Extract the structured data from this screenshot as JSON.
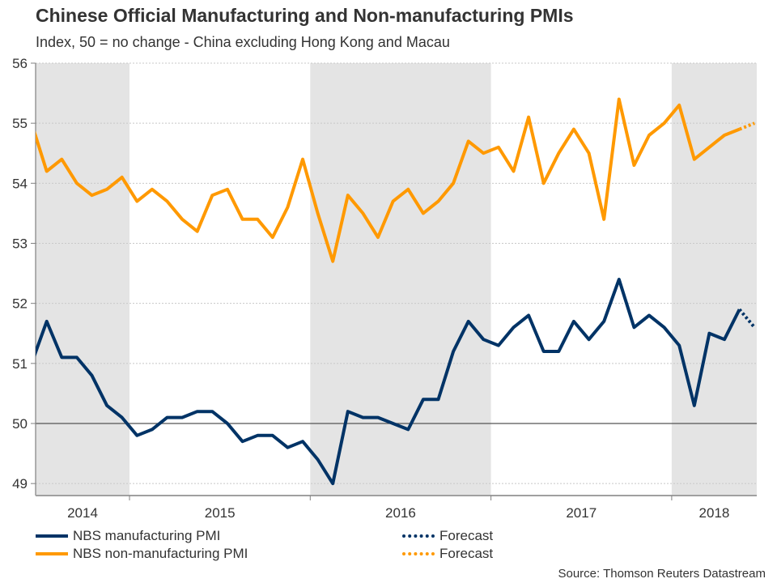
{
  "chart_data": {
    "type": "line",
    "title": "Chinese Official Manufacturing and Non-manufacturing PMIs",
    "subtitle": "Index, 50 = no change - China excluding Hong Kong and Macau",
    "xlabel": "",
    "ylabel": "",
    "ylim": [
      48.8,
      56
    ],
    "yticks": [
      49,
      50,
      51,
      52,
      53,
      54,
      55,
      56
    ],
    "reference_line": 50,
    "grid": true,
    "x_range": [
      "2014-06-17",
      "2018-06-22"
    ],
    "year_labels": [
      "2014",
      "2015",
      "2016",
      "2017",
      "2018"
    ],
    "shaded_years": [
      "2014",
      "2016",
      "2018"
    ],
    "x": [
      "2014-06",
      "2014-07",
      "2014-08",
      "2014-09",
      "2014-10",
      "2014-11",
      "2014-12",
      "2015-01",
      "2015-02",
      "2015-03",
      "2015-04",
      "2015-05",
      "2015-06",
      "2015-07",
      "2015-08",
      "2015-09",
      "2015-10",
      "2015-11",
      "2015-12",
      "2016-01",
      "2016-02",
      "2016-03",
      "2016-04",
      "2016-05",
      "2016-06",
      "2016-07",
      "2016-08",
      "2016-09",
      "2016-10",
      "2016-11",
      "2016-12",
      "2017-01",
      "2017-02",
      "2017-03",
      "2017-04",
      "2017-05",
      "2017-06",
      "2017-07",
      "2017-08",
      "2017-09",
      "2017-10",
      "2017-11",
      "2017-12",
      "2018-01",
      "2018-02",
      "2018-03",
      "2018-04",
      "2018-05",
      "2018-06"
    ],
    "series": [
      {
        "name": "NBS manufacturing PMI",
        "color": "#003366",
        "values": [
          51.0,
          51.7,
          51.1,
          51.1,
          50.8,
          50.3,
          50.1,
          49.8,
          49.9,
          50.1,
          50.1,
          50.2,
          50.2,
          50.0,
          49.7,
          49.8,
          49.8,
          49.6,
          49.7,
          49.4,
          49.0,
          50.2,
          50.1,
          50.1,
          50.0,
          49.9,
          50.4,
          50.4,
          51.2,
          51.7,
          51.4,
          51.3,
          51.6,
          51.8,
          51.2,
          51.2,
          51.7,
          51.4,
          51.7,
          52.4,
          51.6,
          51.8,
          51.6,
          51.3,
          50.3,
          51.5,
          51.4,
          51.9,
          null
        ]
      },
      {
        "name": "NBS non-manufacturing PMI",
        "color": "#ff9900",
        "values": [
          55.0,
          54.2,
          54.4,
          54.0,
          53.8,
          53.9,
          54.1,
          53.7,
          53.9,
          53.7,
          53.4,
          53.2,
          53.8,
          53.9,
          53.4,
          53.4,
          53.1,
          53.6,
          54.4,
          53.5,
          52.7,
          53.8,
          53.5,
          53.1,
          53.7,
          53.9,
          53.5,
          53.7,
          54.0,
          54.7,
          54.5,
          54.6,
          54.2,
          55.1,
          54.0,
          54.5,
          54.9,
          54.5,
          53.4,
          55.4,
          54.3,
          54.8,
          55.0,
          55.3,
          54.4,
          54.6,
          54.8,
          54.9,
          null
        ]
      },
      {
        "name": "Forecast",
        "of": "NBS manufacturing PMI",
        "style": "dotted",
        "color": "#003366",
        "x": [
          "2018-05",
          "2018-06"
        ],
        "values": [
          51.9,
          51.6
        ]
      },
      {
        "name": "Forecast",
        "of": "NBS non-manufacturing PMI",
        "style": "dotted",
        "color": "#ff9900",
        "x": [
          "2018-05",
          "2018-06"
        ],
        "values": [
          54.9,
          55.0
        ]
      }
    ],
    "legend": [
      {
        "label": "NBS manufacturing PMI",
        "style": "solid",
        "color": "#003366"
      },
      {
        "label": "NBS non-manufacturing PMI",
        "style": "solid",
        "color": "#ff9900"
      },
      {
        "label": "Forecast",
        "style": "dotted",
        "color": "#003366"
      },
      {
        "label": "Forecast",
        "style": "dotted",
        "color": "#ff9900"
      }
    ],
    "legend_position": "bottom",
    "source": "Source: Thomson Reuters Datastream"
  }
}
